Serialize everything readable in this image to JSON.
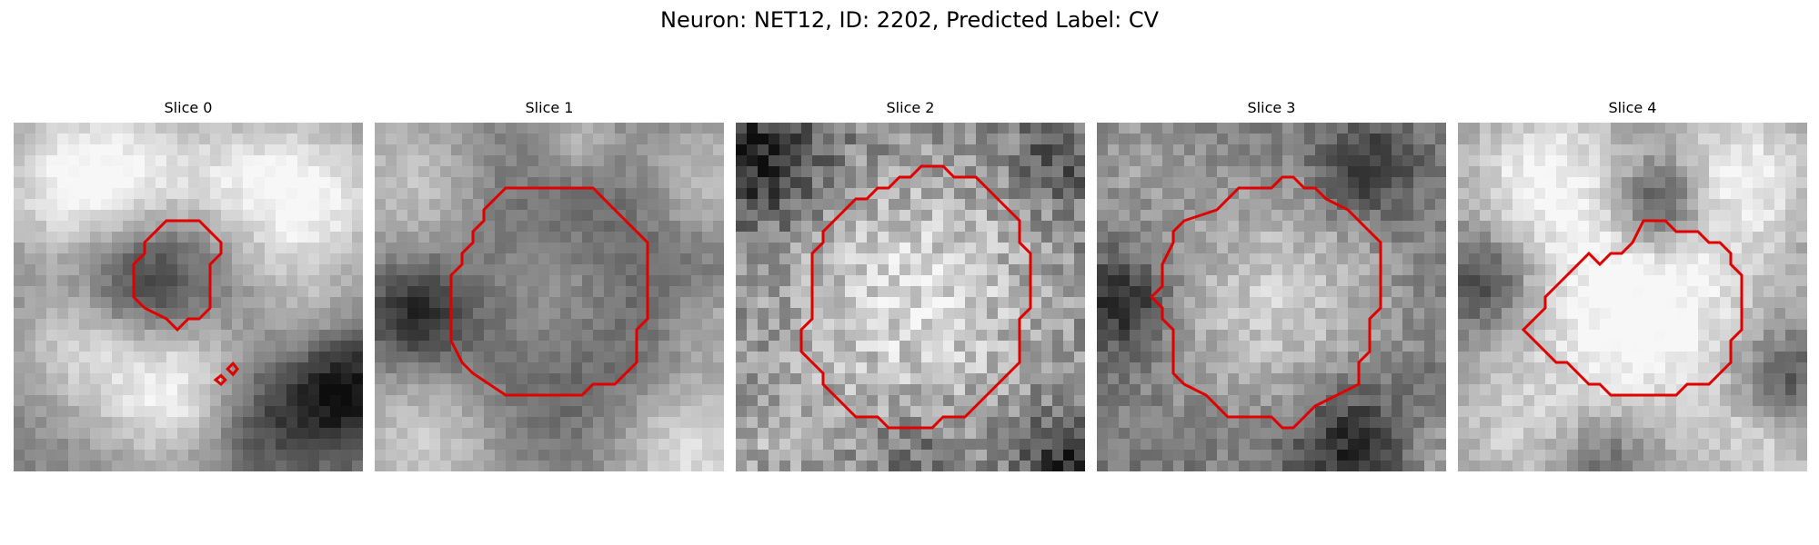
{
  "figure": {
    "title": "Neuron: NET12, ID: 2202, Predicted Label: CV"
  },
  "panels": [
    {
      "title": "Slice 0"
    },
    {
      "title": "Slice 1"
    },
    {
      "title": "Slice 2"
    },
    {
      "title": "Slice 3"
    },
    {
      "title": "Slice 4"
    }
  ],
  "colors": {
    "contour": "#e00000"
  }
}
